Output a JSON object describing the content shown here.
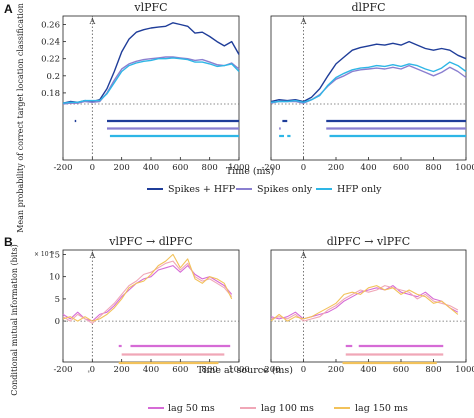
{
  "panels": {
    "A": {
      "letter": "A",
      "ylabel": "Mean probability of correct target location classification",
      "xlabel": "Time (ms)",
      "legend": [
        "Spikes + HFP",
        "Spikes only",
        "HFP only"
      ]
    },
    "B": {
      "letter": "B",
      "ylabel": "Conditional mutual information (bits)",
      "xlabel": "Time at source (ms)",
      "yexponent": "× 10⁻³",
      "legend": [
        "lag 50 ms",
        "lag 100 ms",
        "lag 150 ms"
      ]
    }
  },
  "event_marker": "A",
  "colors": {
    "spikes_hfp": "#1f3d99",
    "spikes_only": "#8a7fd0",
    "hfp_only": "#2eb6e6",
    "lag50": "#d66bd6",
    "lag100": "#f0a7b7",
    "lag150": "#f2c25a",
    "sig_B_all": "#a0a0a0"
  },
  "chart_data": [
    {
      "type": "line",
      "title": "vlPFC",
      "xlabel": "Time (ms)",
      "xlim": [
        -200,
        1000
      ],
      "ylim": [
        0.16,
        0.27
      ],
      "xticks": [
        -200,
        0,
        200,
        400,
        600,
        800,
        1000
      ],
      "yticks": [
        0.18,
        0.2,
        0.22,
        0.24,
        0.26
      ],
      "chance_level": 0.167,
      "x": [
        -200,
        -150,
        -100,
        -50,
        0,
        50,
        100,
        150,
        200,
        250,
        300,
        350,
        400,
        450,
        500,
        550,
        600,
        650,
        700,
        750,
        800,
        850,
        900,
        950,
        1000
      ],
      "series": [
        {
          "name": "Spikes + HFP",
          "color_key": "spikes_hfp",
          "values": [
            0.168,
            0.17,
            0.169,
            0.171,
            0.17,
            0.172,
            0.185,
            0.205,
            0.228,
            0.243,
            0.251,
            0.254,
            0.256,
            0.257,
            0.258,
            0.262,
            0.26,
            0.258,
            0.25,
            0.251,
            0.246,
            0.24,
            0.235,
            0.24,
            0.225
          ]
        },
        {
          "name": "Spikes only",
          "color_key": "spikes_only",
          "values": [
            0.167,
            0.168,
            0.168,
            0.17,
            0.169,
            0.17,
            0.18,
            0.195,
            0.208,
            0.214,
            0.217,
            0.219,
            0.22,
            0.221,
            0.222,
            0.222,
            0.221,
            0.22,
            0.218,
            0.219,
            0.216,
            0.213,
            0.212,
            0.215,
            0.208
          ]
        },
        {
          "name": "HFP only",
          "color_key": "hfp_only",
          "values": [
            0.168,
            0.169,
            0.169,
            0.171,
            0.171,
            0.171,
            0.179,
            0.192,
            0.205,
            0.212,
            0.215,
            0.217,
            0.218,
            0.22,
            0.22,
            0.221,
            0.22,
            0.219,
            0.216,
            0.216,
            0.214,
            0.211,
            0.212,
            0.214,
            0.205
          ]
        }
      ],
      "significance": [
        {
          "color_key": "spikes_hfp",
          "ranges": [
            [
              -120,
              -110
            ],
            [
              100,
              1000
            ]
          ]
        },
        {
          "color_key": "spikes_only",
          "ranges": [
            [
              100,
              1000
            ]
          ]
        },
        {
          "color_key": "hfp_only",
          "ranges": [
            [
              120,
              1000
            ]
          ]
        }
      ]
    },
    {
      "type": "line",
      "title": "dlPFC",
      "xlabel": "Time (ms)",
      "xlim": [
        -200,
        1000
      ],
      "ylim": [
        0.16,
        0.27
      ],
      "xticks": [
        -200,
        0,
        200,
        400,
        600,
        800,
        1000
      ],
      "chance_level": 0.167,
      "x": [
        -200,
        -150,
        -100,
        -50,
        0,
        50,
        100,
        150,
        200,
        250,
        300,
        350,
        400,
        450,
        500,
        550,
        600,
        650,
        700,
        750,
        800,
        850,
        900,
        950,
        1000
      ],
      "series": [
        {
          "name": "Spikes + HFP",
          "color_key": "spikes_hfp",
          "values": [
            0.17,
            0.172,
            0.171,
            0.172,
            0.17,
            0.175,
            0.185,
            0.2,
            0.214,
            0.222,
            0.23,
            0.233,
            0.235,
            0.237,
            0.236,
            0.238,
            0.236,
            0.24,
            0.236,
            0.232,
            0.23,
            0.232,
            0.23,
            0.224,
            0.22
          ]
        },
        {
          "name": "Spikes only",
          "color_key": "spikes_only",
          "values": [
            0.168,
            0.17,
            0.17,
            0.17,
            0.168,
            0.172,
            0.178,
            0.188,
            0.196,
            0.2,
            0.205,
            0.207,
            0.208,
            0.209,
            0.208,
            0.21,
            0.208,
            0.212,
            0.208,
            0.204,
            0.2,
            0.204,
            0.21,
            0.205,
            0.198
          ]
        },
        {
          "name": "HFP only",
          "color_key": "hfp_only",
          "values": [
            0.169,
            0.17,
            0.17,
            0.171,
            0.169,
            0.172,
            0.177,
            0.189,
            0.198,
            0.203,
            0.207,
            0.209,
            0.21,
            0.212,
            0.211,
            0.213,
            0.211,
            0.214,
            0.212,
            0.208,
            0.205,
            0.209,
            0.216,
            0.212,
            0.205
          ]
        }
      ],
      "significance": [
        {
          "color_key": "spikes_hfp",
          "ranges": [
            [
              -130,
              -100
            ],
            [
              140,
              1000
            ]
          ]
        },
        {
          "color_key": "spikes_only",
          "ranges": [
            [
              -150,
              -140
            ],
            [
              140,
              1000
            ]
          ]
        },
        {
          "color_key": "hfp_only",
          "ranges": [
            [
              -150,
              -120
            ],
            [
              -100,
              -80
            ],
            [
              160,
              1000
            ]
          ]
        }
      ]
    },
    {
      "type": "line",
      "title": "vlPFC → dlPFC",
      "xlabel": "Time at source (ms)",
      "xlim": [
        -200,
        1000
      ],
      "ylim": [
        -2,
        16
      ],
      "xticks": [
        -200,
        0,
        200,
        400,
        600,
        800,
        1000
      ],
      "yticks": [
        0,
        5,
        10,
        15
      ],
      "x": [
        -200,
        -150,
        -100,
        -50,
        0,
        50,
        100,
        150,
        200,
        250,
        300,
        350,
        400,
        450,
        500,
        550,
        600,
        650,
        700,
        750,
        800,
        850,
        900,
        950
      ],
      "series": [
        {
          "name": "lag 50 ms",
          "color_key": "lag50",
          "values": [
            1.5,
            0.5,
            2.0,
            0.5,
            0.0,
            1.5,
            2.0,
            3.5,
            5.5,
            7.0,
            8.5,
            9.5,
            10.0,
            11.5,
            12.0,
            12.5,
            11.0,
            12.5,
            10.5,
            9.5,
            10.0,
            9.0,
            8.0,
            6.0
          ]
        },
        {
          "name": "lag 100 ms",
          "color_key": "lag100",
          "values": [
            1.0,
            0.0,
            1.5,
            0.5,
            -0.5,
            1.0,
            2.5,
            4.0,
            6.0,
            8.0,
            9.0,
            10.5,
            11.0,
            12.0,
            13.0,
            13.5,
            11.5,
            13.0,
            10.0,
            9.0,
            9.5,
            8.5,
            7.5,
            5.5
          ]
        },
        {
          "name": "lag 150 ms",
          "color_key": "lag150",
          "values": [
            0.5,
            1.0,
            0.0,
            1.0,
            0.0,
            0.5,
            1.5,
            3.0,
            5.0,
            7.5,
            8.5,
            9.0,
            10.5,
            12.5,
            13.5,
            15.0,
            12.0,
            14.0,
            9.5,
            8.5,
            10.0,
            9.5,
            8.5,
            5.0
          ]
        }
      ],
      "significance": [
        {
          "color_key": "lag50",
          "ranges": [
            [
              180,
              200
            ],
            [
              260,
              940
            ]
          ]
        },
        {
          "color_key": "lag100",
          "ranges": [
            [
              200,
              900
            ]
          ]
        },
        {
          "color_key": "lag150",
          "ranges": [
            [
              180,
              860
            ]
          ]
        },
        {
          "color_key": "sig_B_all",
          "ranges": [
            [
              -30,
              -20
            ]
          ]
        }
      ]
    },
    {
      "type": "line",
      "title": "dlPFC → vlPFC",
      "xlabel": "Time at source (ms)",
      "xlim": [
        -200,
        1000
      ],
      "ylim": [
        -2,
        16
      ],
      "xticks": [
        -200,
        0,
        200,
        400,
        600,
        800,
        1000
      ],
      "x": [
        -200,
        -150,
        -100,
        -50,
        0,
        50,
        100,
        150,
        200,
        250,
        300,
        350,
        400,
        450,
        500,
        550,
        600,
        650,
        700,
        750,
        800,
        850,
        900,
        950
      ],
      "series": [
        {
          "name": "lag 50 ms",
          "color_key": "lag50",
          "values": [
            1.0,
            0.5,
            1.0,
            2.0,
            0.5,
            1.0,
            1.5,
            2.0,
            3.0,
            4.5,
            5.5,
            6.5,
            7.0,
            7.5,
            7.0,
            8.0,
            6.5,
            6.0,
            5.5,
            6.5,
            5.0,
            4.5,
            3.0,
            2.0
          ]
        },
        {
          "name": "lag 100 ms",
          "color_key": "lag100",
          "values": [
            0.5,
            1.0,
            0.5,
            1.5,
            0.0,
            0.5,
            1.0,
            2.5,
            3.5,
            5.0,
            6.0,
            7.0,
            6.5,
            7.0,
            8.0,
            7.5,
            7.0,
            6.5,
            5.0,
            6.0,
            4.5,
            4.0,
            3.5,
            2.5
          ]
        },
        {
          "name": "lag 150 ms",
          "color_key": "lag150",
          "values": [
            0.0,
            1.5,
            0.0,
            1.0,
            0.5,
            1.0,
            2.0,
            3.0,
            4.0,
            6.0,
            6.5,
            6.0,
            7.5,
            8.0,
            7.0,
            7.5,
            6.0,
            7.0,
            6.0,
            5.5,
            4.0,
            4.5,
            3.0,
            1.5
          ]
        }
      ],
      "significance": [
        {
          "color_key": "lag50",
          "ranges": [
            [
              260,
              300
            ],
            [
              340,
              860
            ]
          ]
        },
        {
          "color_key": "lag100",
          "ranges": [
            [
              260,
              860
            ]
          ]
        },
        {
          "color_key": "lag150",
          "ranges": [
            [
              240,
              820
            ]
          ]
        }
      ]
    }
  ]
}
